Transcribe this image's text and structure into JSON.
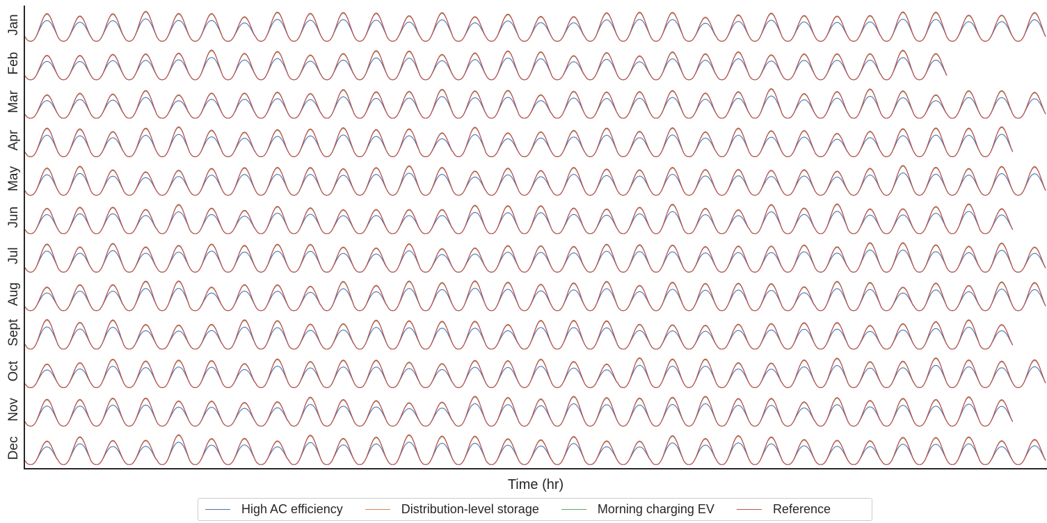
{
  "chart_data": {
    "type": "line",
    "title": "",
    "xlabel": "Time (hr)",
    "ylabel": "",
    "grid": false,
    "legend_position": "bottom-center",
    "rows": [
      {
        "label": "Jan",
        "days": 31
      },
      {
        "label": "Feb",
        "days": 28
      },
      {
        "label": "Mar",
        "days": 31
      },
      {
        "label": "Apr",
        "days": 30
      },
      {
        "label": "May",
        "days": 31
      },
      {
        "label": "Jun",
        "days": 30
      },
      {
        "label": "Jul",
        "days": 31
      },
      {
        "label": "Aug",
        "days": 31
      },
      {
        "label": "Sept",
        "days": 30
      },
      {
        "label": "Oct",
        "days": 31
      },
      {
        "label": "Nov",
        "days": 30
      },
      {
        "label": "Dec",
        "days": 31
      }
    ],
    "series": [
      {
        "name": "High AC efficiency",
        "color": "#4c72b0",
        "relative_level": 0.82
      },
      {
        "name": "Distribution-level storage",
        "color": "#dd8452",
        "relative_level": 0.98
      },
      {
        "name": "Morning charging EV",
        "color": "#55a868",
        "relative_level": 0.99
      },
      {
        "name": "Reference",
        "color": "#c44e52",
        "relative_level": 1.0
      }
    ]
  }
}
